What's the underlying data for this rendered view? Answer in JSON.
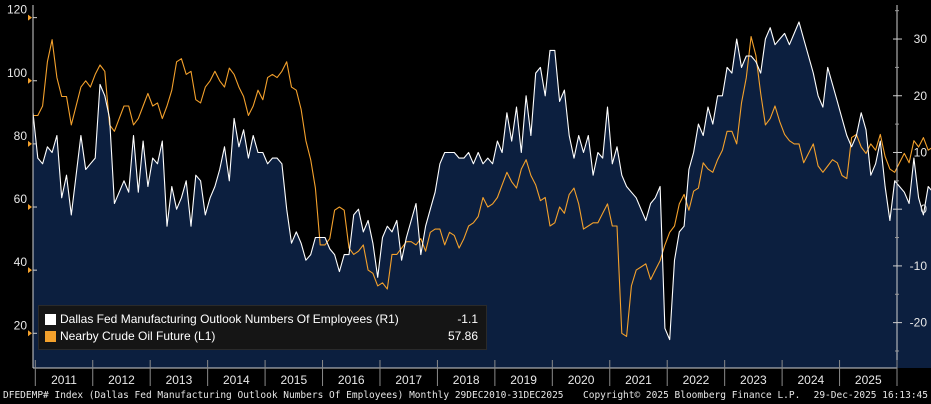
{
  "chart_data": {
    "type": "line",
    "title": "",
    "x_range": [
      "Dec 2010",
      "Dec 2025"
    ],
    "x_ticks": [
      "2011",
      "2012",
      "2013",
      "2014",
      "2015",
      "2016",
      "2017",
      "2018",
      "2019",
      "2020",
      "2021",
      "2022",
      "2023",
      "2024",
      "2025"
    ],
    "left_axis": {
      "label": "L1",
      "ylim": [
        9,
        124
      ],
      "ticks": [
        20,
        40,
        60,
        80,
        100,
        120
      ]
    },
    "right_axis": {
      "label": "R1",
      "ylim": [
        -28,
        36
      ],
      "ticks": [
        -20,
        -10,
        0,
        10,
        20,
        30
      ]
    },
    "series": [
      {
        "name": "Dallas Fed Manufacturing Outlook Numbers Of Employees",
        "axis": "R1",
        "color": "#ffffff",
        "fill": "#0c1f3f",
        "last_value": "-1.1",
        "x_start": 2010.96,
        "step_years": 0.0833333,
        "values": [
          17,
          9,
          8,
          11,
          10,
          13,
          2,
          6,
          -1,
          6,
          13,
          7,
          8,
          9,
          22,
          20,
          16,
          1,
          3,
          5,
          3,
          13,
          3,
          12,
          4,
          9,
          8,
          12,
          -3,
          4,
          0,
          2,
          5,
          -3,
          6,
          5,
          -1,
          2,
          4,
          7,
          11,
          5,
          16,
          11,
          14,
          9,
          13,
          10,
          10,
          8,
          9,
          9,
          8,
          0,
          -6,
          -4,
          -6,
          -9,
          -8,
          -5,
          -5,
          -5,
          -7,
          -8,
          -11,
          -8,
          -8,
          -1,
          0,
          -4,
          -2,
          -6,
          -12,
          -5,
          -3,
          -4,
          -2,
          -9,
          -5,
          -2,
          1,
          -8,
          -3,
          0,
          3,
          8,
          10,
          10,
          10,
          9,
          9,
          10,
          8,
          10,
          8,
          9,
          8,
          12,
          10,
          17,
          12,
          18,
          10,
          20,
          13,
          24,
          25,
          20,
          28,
          28,
          19,
          21,
          13,
          9,
          13,
          10,
          13,
          6,
          10,
          9,
          18,
          8,
          11,
          6,
          4,
          3,
          2,
          0,
          -2,
          1,
          2,
          4,
          -21,
          -23,
          -9,
          -4,
          -3,
          7,
          10,
          15,
          13,
          18,
          15,
          20,
          20,
          25,
          24,
          30,
          25,
          27,
          27,
          26,
          24,
          30,
          32,
          29,
          30,
          31,
          29,
          31,
          33,
          30,
          27,
          24,
          20,
          18,
          25,
          22,
          19,
          16,
          13,
          11,
          13,
          17,
          14,
          6,
          8,
          12,
          4,
          -2,
          5,
          4,
          3,
          1,
          9,
          2,
          -1,
          4,
          3,
          -2,
          -3,
          -5,
          -10,
          -2,
          0,
          4,
          -3,
          3,
          6,
          -1,
          6,
          1,
          5,
          -6,
          3,
          2,
          0,
          -1,
          -1,
          -4,
          -4,
          -2,
          3,
          7,
          8,
          -3,
          5,
          -1,
          3,
          -1.1
        ]
      },
      {
        "name": "Nearby Crude Oil Future",
        "axis": "L1",
        "color": "#f4a12c",
        "last_value": "57.86",
        "x_start": 2010.96,
        "step_years": 0.0833333,
        "values": [
          89,
          89,
          92,
          106,
          113,
          101,
          95,
          95,
          86,
          92,
          98,
          100,
          98,
          102,
          105,
          103,
          86,
          84,
          88,
          92,
          92,
          86,
          88,
          92,
          96,
          92,
          93,
          88,
          92,
          97,
          106,
          107,
          102,
          103,
          94,
          93,
          98,
          100,
          103,
          100,
          98,
          104,
          102,
          98,
          95,
          89,
          92,
          97,
          94,
          101,
          102,
          101,
          103,
          106,
          98,
          97,
          91,
          81,
          75,
          66,
          48,
          48,
          50,
          59,
          60,
          59,
          47,
          45,
          46,
          48,
          40,
          39,
          35,
          36,
          34,
          45,
          45,
          47,
          49,
          49,
          48,
          50,
          46,
          52,
          53,
          53,
          48,
          52,
          51,
          47,
          50,
          54,
          55,
          57,
          63,
          60,
          61,
          63,
          67,
          71,
          68,
          66,
          72,
          75,
          70,
          67,
          62,
          63,
          54,
          55,
          60,
          58,
          64,
          66,
          61,
          53,
          54,
          55,
          55,
          58,
          61,
          54,
          54,
          20,
          19,
          35,
          40,
          41,
          42,
          37,
          40,
          43,
          48,
          52,
          54,
          61,
          64,
          59,
          65,
          66,
          74,
          72,
          71,
          75,
          78,
          84,
          84,
          80,
          93,
          101,
          114,
          108,
          96,
          86,
          88,
          92,
          87,
          83,
          81,
          80,
          80,
          74,
          77,
          80,
          73,
          71,
          73,
          75,
          74,
          70,
          69,
          82,
          83,
          79,
          77,
          80,
          78,
          83,
          76,
          72,
          71,
          74,
          77,
          74,
          81,
          79,
          82,
          78,
          79,
          70,
          69,
          72,
          71,
          70,
          72,
          68,
          70,
          71,
          71,
          62,
          60,
          62,
          65,
          62,
          64,
          63,
          61,
          57.86
        ]
      }
    ]
  },
  "legend": {
    "rows": [
      {
        "label": "Dallas Fed Manufacturing Outlook Numbers Of Employees  (R1)",
        "value": "-1.1",
        "color": "#ffffff"
      },
      {
        "label": "Nearby Crude Oil Future (L1)",
        "value": "57.86",
        "color": "#f4a12c"
      }
    ]
  },
  "footer": {
    "left": "DFEDEMP# Index (Dallas Fed Manufacturing Outlook Numbers Of Employees) Monthly 29DEC2010-31DEC2025",
    "copyright": "Copyright© 2025 Bloomberg Finance L.P.",
    "timestamp": "29-Dec-2025 16:13:45"
  }
}
